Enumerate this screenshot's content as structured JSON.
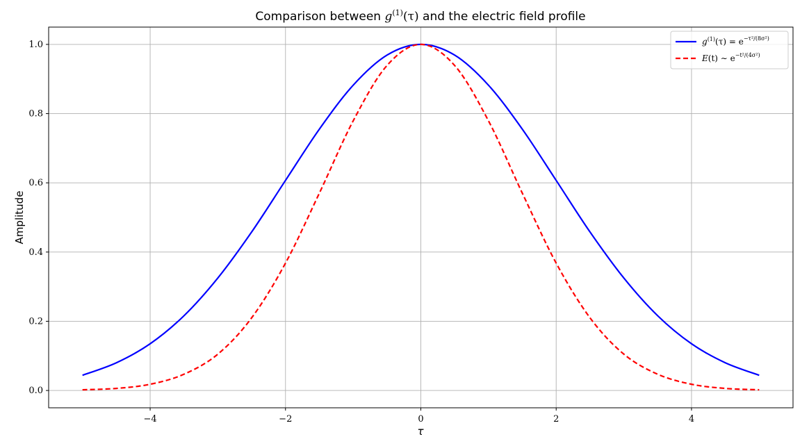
{
  "chart_data": {
    "type": "line",
    "title_parts": {
      "before": "Comparison between ",
      "g": "g",
      "sup": "(1)",
      "arg": "(τ)",
      "after": " and the electric field profile"
    },
    "xlabel": "τ",
    "ylabel": "Amplitude",
    "xlim": [
      -5.5,
      5.5
    ],
    "ylim": [
      -0.05,
      1.05
    ],
    "x_ticks": [
      -4,
      -2,
      0,
      2,
      4
    ],
    "x_tick_labels": [
      "−4",
      "−2",
      "0",
      "2",
      "4"
    ],
    "y_ticks": [
      0.0,
      0.2,
      0.4,
      0.6,
      0.8,
      1.0
    ],
    "y_tick_labels": [
      "0.0",
      "0.2",
      "0.4",
      "0.6",
      "0.8",
      "1.0"
    ],
    "grid": true,
    "legend_position": "top-right",
    "series": [
      {
        "name": "g(1)(τ) = e^(−τ²/(8σ²))",
        "legend": {
          "main": "g",
          "sup1": "(1)",
          "mid": "(τ) = e",
          "sup2": "−τ²/(8σ²)"
        },
        "color": "#0000ff",
        "style": "solid",
        "x": [
          -5,
          -4.5,
          -4,
          -3.5,
          -3,
          -2.5,
          -2,
          -1.5,
          -1,
          -0.5,
          0,
          0.5,
          1,
          1.5,
          2,
          2.5,
          3,
          3.5,
          4,
          4.5,
          5
        ],
        "y": [
          0.044,
          0.08,
          0.135,
          0.216,
          0.325,
          0.458,
          0.607,
          0.755,
          0.882,
          0.969,
          1.0,
          0.969,
          0.882,
          0.755,
          0.607,
          0.458,
          0.325,
          0.216,
          0.135,
          0.08,
          0.044
        ]
      },
      {
        "name": "E(t) ∼ e^(−t²/(4σ²))",
        "legend": {
          "main": "E",
          "sup1": "",
          "mid": "(t) ∼ e",
          "sup2": "−t²/(4σ²)"
        },
        "color": "#ff0000",
        "style": "dashed",
        "x": [
          -5,
          -4.5,
          -4,
          -3.5,
          -3,
          -2.5,
          -2,
          -1.5,
          -1,
          -0.5,
          0,
          0.5,
          1,
          1.5,
          2,
          2.5,
          3,
          3.5,
          4,
          4.5,
          5
        ],
        "y": [
          0.002,
          0.006,
          0.018,
          0.047,
          0.105,
          0.21,
          0.368,
          0.57,
          0.779,
          0.939,
          1.0,
          0.939,
          0.779,
          0.57,
          0.368,
          0.21,
          0.105,
          0.047,
          0.018,
          0.006,
          0.002
        ]
      }
    ]
  },
  "colors": {
    "grid": "#b0b0b0",
    "axes": "#000000",
    "legend_border": "#cccccc"
  }
}
